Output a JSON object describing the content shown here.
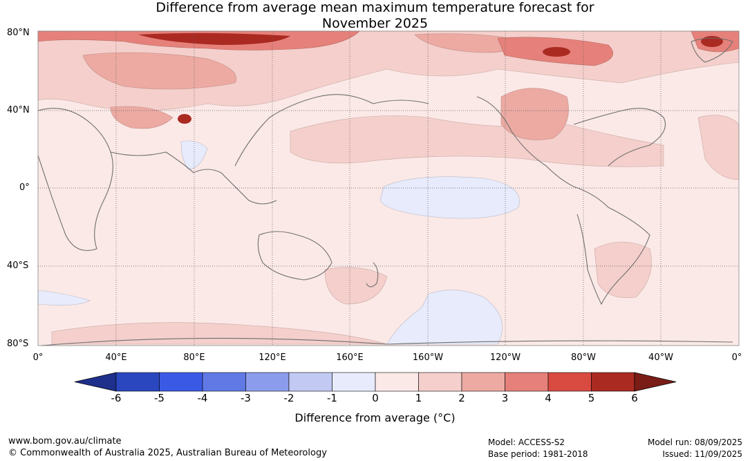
{
  "title_line1": "Difference from average mean maximum temperature forecast for",
  "title_line2": "November 2025",
  "lat_labels": [
    "80°N",
    "40°N",
    "0°",
    "40°S",
    "80°S"
  ],
  "lon_labels": [
    "0°",
    "40°E",
    "80°E",
    "120°E",
    "160°E",
    "160°W",
    "120°W",
    "80°W",
    "40°W",
    "0°"
  ],
  "colorbar": {
    "ticks": [
      "-6",
      "-5",
      "-4",
      "-3",
      "-2",
      "-1",
      "0",
      "1",
      "2",
      "3",
      "4",
      "5",
      "6"
    ],
    "colors": [
      "#1e2f8c",
      "#2a47c0",
      "#3a5ae6",
      "#6079e4",
      "#8c9cec",
      "#c2c9f3",
      "#e7ebfb",
      "#fbe9e7",
      "#f4cfcb",
      "#ecaaa3",
      "#e5817a",
      "#d94a41",
      "#aa2a22",
      "#7a1d16"
    ],
    "label": "Difference from average (°C)"
  },
  "footer": {
    "website": "www.bom.gov.au/climate",
    "copyright": "© Commonwealth of Australia 2025, Australian Bureau of Meteorology",
    "model": "Model: ACCESS-S2",
    "base_period": "Base period: 1981-2018",
    "model_run": "Model run: 08/09/2025",
    "issued": "Issued: 11/09/2025"
  }
}
